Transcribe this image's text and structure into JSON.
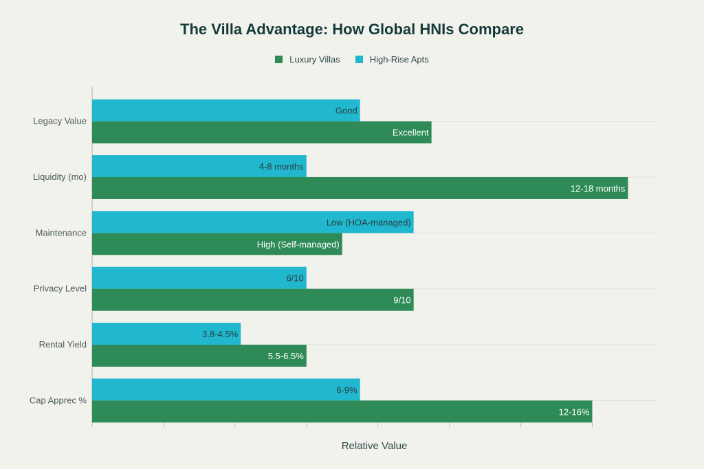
{
  "chart_data": {
    "type": "bar",
    "orientation": "horizontal",
    "title": "The Villa Advantage: How Global HNIs Compare",
    "xlabel": "Relative Value",
    "ylabel": "",
    "xlim": [
      0,
      7.9
    ],
    "x_ticks": [
      0,
      1,
      2,
      3,
      4,
      5,
      6,
      7
    ],
    "grid": true,
    "legend_position": "top-center",
    "categories": [
      "Legacy Value",
      "Liquidity (mo)",
      "Maintenance",
      "Privacy Level",
      "Rental Yield",
      "Cap Apprec %"
    ],
    "series": [
      {
        "name": "Luxury Villas",
        "color": "#2e8b57",
        "values": [
          4.75,
          7.5,
          3.5,
          4.5,
          3.0,
          7.0
        ],
        "labels": [
          "Excellent",
          "12-18 months",
          "High (Self-managed)",
          "9/10",
          "5.5-6.5%",
          "12-16%"
        ]
      },
      {
        "name": "High-Rise Apts",
        "color": "#21b8cf",
        "values": [
          3.75,
          3.0,
          4.5,
          3.0,
          2.08,
          3.75
        ],
        "labels": [
          "Good",
          "4-8 months",
          "Low (HOA-managed)",
          "6/10",
          "3.8-4.5%",
          "6-9%"
        ]
      }
    ]
  }
}
